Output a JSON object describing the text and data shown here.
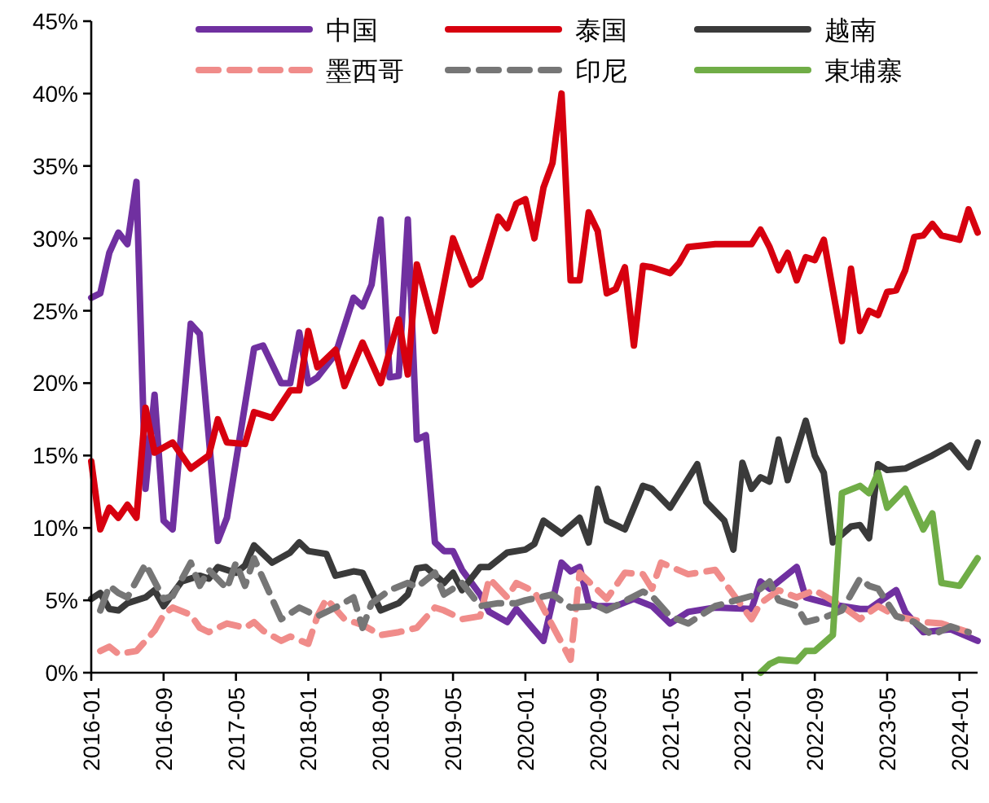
{
  "chart_data": {
    "type": "line",
    "xlim": [
      "2016-01",
      "2024-03"
    ],
    "xticks": [
      "2016-01",
      "2016-09",
      "2017-05",
      "2018-01",
      "2018-09",
      "2019-05",
      "2020-01",
      "2020-09",
      "2021-05",
      "2022-01",
      "2022-09",
      "2023-05",
      "2024-01"
    ],
    "ylim": [
      0,
      45
    ],
    "yticks": [
      {
        "value": 0,
        "label": "0%"
      },
      {
        "value": 5,
        "label": "5%"
      },
      {
        "value": 10,
        "label": "10%"
      },
      {
        "value": 15,
        "label": "15%"
      },
      {
        "value": 20,
        "label": "20%"
      },
      {
        "value": 25,
        "label": "25%"
      },
      {
        "value": 30,
        "label": "30%"
      },
      {
        "value": 35,
        "label": "35%"
      },
      {
        "value": 40,
        "label": "40%"
      },
      {
        "value": 45,
        "label": "45%"
      }
    ],
    "legend": "top",
    "series": [
      {
        "name": "中国",
        "color": "#7030a0",
        "line_style": "solid",
        "x": [
          "2016-01",
          "2016-02",
          "2016-03",
          "2016-04",
          "2016-05",
          "2016-06",
          "2016-07",
          "2016-08",
          "2016-09",
          "2016-10",
          "2016-12",
          "2017-01",
          "2017-03",
          "2017-04",
          "2017-07",
          "2017-08",
          "2017-10",
          "2017-11",
          "2017-12",
          "2018-01",
          "2018-02",
          "2018-04",
          "2018-06",
          "2018-07",
          "2018-08",
          "2018-09",
          "2018-10",
          "2018-11",
          "2018-12",
          "2019-01",
          "2019-02",
          "2019-03",
          "2019-04",
          "2019-05",
          "2019-06",
          "2019-08",
          "2019-09",
          "2019-11",
          "2019-12",
          "2020-03",
          "2020-05",
          "2020-06",
          "2020-07",
          "2020-08",
          "2020-09",
          "2020-11",
          "2021-01",
          "2021-03",
          "2021-05",
          "2021-07",
          "2021-10",
          "2022-02",
          "2022-03",
          "2022-04",
          "2022-07",
          "2022-08",
          "2022-11",
          "2023-02",
          "2023-03",
          "2023-06",
          "2023-07",
          "2023-09",
          "2023-12",
          "2024-03"
        ],
        "values": [
          25.9,
          26.2,
          29,
          30.4,
          29.6,
          33.9,
          12.7,
          19.2,
          10.5,
          9.9,
          24.1,
          23.4,
          9.1,
          10.7,
          22.4,
          22.6,
          20,
          20,
          23.5,
          20,
          20.4,
          22,
          25.9,
          25.3,
          26.8,
          31.3,
          20.4,
          20.5,
          31.3,
          16.1,
          16.4,
          9,
          8.4,
          8.4,
          7.1,
          5.4,
          4.2,
          3.5,
          4.4,
          2.2,
          7.6,
          7,
          7.3,
          4.8,
          4.6,
          4.6,
          5.1,
          4.6,
          3.4,
          4.2,
          4.5,
          4.4,
          6.3,
          5.8,
          7.3,
          5.2,
          4.7,
          4.4,
          4.4,
          5.7,
          4.2,
          2.8,
          3,
          2.2
        ]
      },
      {
        "name": "泰国",
        "color": "#d7000f",
        "line_style": "solid",
        "x": [
          "2016-01",
          "2016-02",
          "2016-03",
          "2016-04",
          "2016-05",
          "2016-06",
          "2016-07",
          "2016-08",
          "2016-10",
          "2016-12",
          "2017-02",
          "2017-03",
          "2017-04",
          "2017-06",
          "2017-07",
          "2017-09",
          "2017-11",
          "2017-12",
          "2018-01",
          "2018-02",
          "2018-04",
          "2018-05",
          "2018-07",
          "2018-09",
          "2018-11",
          "2018-12",
          "2019-01",
          "2019-03",
          "2019-05",
          "2019-07",
          "2019-08",
          "2019-10",
          "2019-11",
          "2019-12",
          "2020-01",
          "2020-02",
          "2020-03",
          "2020-04",
          "2020-05",
          "2020-06",
          "2020-07",
          "2020-08",
          "2020-09",
          "2020-10",
          "2020-11",
          "2020-12",
          "2021-01",
          "2021-02",
          "2021-03",
          "2021-05",
          "2021-06",
          "2021-07",
          "2021-10",
          "2022-02",
          "2022-03",
          "2022-04",
          "2022-05",
          "2022-06",
          "2022-07",
          "2022-08",
          "2022-09",
          "2022-10",
          "2022-12",
          "2023-01",
          "2023-02",
          "2023-03",
          "2023-04",
          "2023-05",
          "2023-06",
          "2023-07",
          "2023-08",
          "2023-09",
          "2023-10",
          "2023-11",
          "2024-01",
          "2024-02",
          "2024-03"
        ],
        "values": [
          14.6,
          9.9,
          11.4,
          10.7,
          11.6,
          10.7,
          18.3,
          15.2,
          15.9,
          14.1,
          15,
          17.5,
          15.9,
          15.8,
          18,
          17.6,
          19.5,
          19.5,
          23.6,
          21.1,
          22.3,
          19.8,
          22.8,
          20,
          24.4,
          20.6,
          28.2,
          23.6,
          30,
          26.8,
          27.3,
          31.5,
          30.7,
          32.4,
          32.7,
          30,
          33.5,
          35.2,
          40,
          27.1,
          27.1,
          31.8,
          30.5,
          26.2,
          26.5,
          28,
          22.6,
          28.1,
          28,
          27.6,
          28.3,
          29.4,
          29.6,
          29.6,
          30.6,
          29.4,
          27.8,
          29,
          27.1,
          28.7,
          28.5,
          29.9,
          22.9,
          27.9,
          23.6,
          25,
          24.7,
          26.3,
          26.4,
          27.8,
          30.1,
          30.2,
          31,
          30.2,
          29.9,
          32,
          30.4
        ]
      },
      {
        "name": "越南",
        "color": "#3a3a3a",
        "line_style": "solid",
        "x": [
          "2016-01",
          "2016-02",
          "2016-03",
          "2016-04",
          "2016-05",
          "2016-07",
          "2016-08",
          "2016-09",
          "2016-11",
          "2017-01",
          "2017-02",
          "2017-03",
          "2017-05",
          "2017-06",
          "2017-07",
          "2017-09",
          "2017-11",
          "2017-12",
          "2018-01",
          "2018-03",
          "2018-04",
          "2018-06",
          "2018-07",
          "2018-09",
          "2018-11",
          "2018-12",
          "2019-01",
          "2019-02",
          "2019-04",
          "2019-05",
          "2019-06",
          "2019-08",
          "2019-09",
          "2019-11",
          "2020-01",
          "2020-02",
          "2020-03",
          "2020-05",
          "2020-07",
          "2020-08",
          "2020-09",
          "2020-10",
          "2020-12",
          "2021-02",
          "2021-03",
          "2021-05",
          "2021-07",
          "2021-08",
          "2021-09",
          "2021-11",
          "2021-12",
          "2022-01",
          "2022-02",
          "2022-03",
          "2022-04",
          "2022-05",
          "2022-06",
          "2022-08",
          "2022-09",
          "2022-10",
          "2022-11",
          "2023-01",
          "2023-02",
          "2023-03",
          "2023-04",
          "2023-05",
          "2023-07",
          "2023-09",
          "2023-10",
          "2023-12",
          "2024-02",
          "2024-03"
        ],
        "values": [
          5.1,
          5.5,
          4.4,
          4.3,
          4.8,
          5.2,
          5.7,
          4.6,
          6.3,
          6.7,
          6.5,
          7.3,
          6.9,
          7.4,
          8.8,
          7.6,
          8.3,
          9,
          8.4,
          8.2,
          6.7,
          7,
          6.9,
          4.3,
          4.8,
          5.4,
          7.2,
          7.3,
          6.2,
          6.9,
          5.7,
          7.3,
          7.3,
          8.3,
          8.5,
          8.9,
          10.5,
          9.6,
          10.7,
          9,
          12.7,
          10.5,
          9.9,
          12.9,
          12.7,
          11.4,
          13.4,
          14.4,
          11.8,
          10.5,
          8.5,
          14.5,
          12.7,
          13.5,
          13.2,
          16.1,
          13.3,
          17.4,
          15,
          13.8,
          9,
          10.1,
          10.2,
          9.3,
          14.4,
          14,
          14.1,
          14.7,
          15,
          15.7,
          14.2,
          15.9
        ]
      },
      {
        "name": "墨西哥",
        "color": "#f08c8a",
        "line_style": "dashed",
        "x": [
          "2016-02",
          "2016-03",
          "2016-04",
          "2016-06",
          "2016-08",
          "2016-09",
          "2016-10",
          "2016-12",
          "2017-01",
          "2017-02",
          "2017-04",
          "2017-06",
          "2017-07",
          "2017-08",
          "2017-10",
          "2017-11",
          "2018-01",
          "2018-02",
          "2018-03",
          "2018-05",
          "2018-07",
          "2018-09",
          "2018-11",
          "2019-01",
          "2019-03",
          "2019-04",
          "2019-06",
          "2019-08",
          "2019-09",
          "2019-11",
          "2019-12",
          "2020-02",
          "2020-06",
          "2020-07",
          "2020-08",
          "2020-10",
          "2020-12",
          "2021-02",
          "2021-03",
          "2021-04",
          "2021-07",
          "2021-10",
          "2021-12",
          "2022-02",
          "2022-03",
          "2022-05",
          "2022-07",
          "2022-09",
          "2022-12",
          "2023-02",
          "2023-04",
          "2023-06",
          "2023-09",
          "2023-11",
          "2024-02"
        ],
        "values": [
          1.5,
          1.8,
          1.3,
          1.5,
          2.9,
          4,
          4.5,
          4,
          3.1,
          2.8,
          3.4,
          3.1,
          3.5,
          2.9,
          2.2,
          2.5,
          2,
          3.9,
          5.1,
          3.7,
          3.3,
          2.6,
          2.8,
          3.1,
          4.5,
          4.3,
          3.7,
          3.9,
          6.5,
          5.2,
          6.2,
          5.6,
          0.9,
          6.9,
          6.3,
          5.1,
          6.9,
          6.8,
          5.8,
          7.6,
          6.8,
          7.1,
          5.4,
          3.7,
          4.8,
          5.7,
          5.2,
          5.7,
          4.6,
          3.7,
          4.6,
          3.9,
          3.5,
          3.4,
          2.8
        ]
      },
      {
        "name": "印尼",
        "color": "#767676",
        "line_style": "dashed",
        "x": [
          "2016-02",
          "2016-03",
          "2016-04",
          "2016-05",
          "2016-07",
          "2016-09",
          "2016-10",
          "2016-12",
          "2017-01",
          "2017-02",
          "2017-04",
          "2017-05",
          "2017-06",
          "2017-07",
          "2017-10",
          "2017-12",
          "2018-02",
          "2018-04",
          "2018-06",
          "2018-07",
          "2018-08",
          "2018-10",
          "2018-12",
          "2019-01",
          "2019-03",
          "2019-04",
          "2019-06",
          "2019-08",
          "2019-10",
          "2019-12",
          "2020-01",
          "2020-04",
          "2020-06",
          "2020-09",
          "2020-10",
          "2021-02",
          "2021-03",
          "2021-05",
          "2021-07",
          "2021-10",
          "2022-02",
          "2022-04",
          "2022-05",
          "2022-07",
          "2022-08",
          "2022-10",
          "2022-12",
          "2023-02",
          "2023-03",
          "2023-04",
          "2023-06",
          "2023-08",
          "2023-10",
          "2023-12",
          "2024-02"
        ],
        "values": [
          4.3,
          6,
          5.5,
          5.2,
          7.5,
          5.1,
          5.3,
          7.6,
          6,
          7.1,
          5.8,
          7.6,
          6,
          7.9,
          3.7,
          4.5,
          3.9,
          4.5,
          5.2,
          3.1,
          4.8,
          5.7,
          6.2,
          5.9,
          6.9,
          5.4,
          6.2,
          4.6,
          4.8,
          4.8,
          5,
          5.4,
          4.5,
          4.6,
          4.3,
          5.6,
          5.3,
          3.9,
          3.4,
          4.6,
          5.3,
          6.3,
          5,
          4.6,
          3.5,
          3.8,
          4.3,
          6.5,
          6,
          5.8,
          3.9,
          3.5,
          2.6,
          3.2,
          2.8
        ]
      },
      {
        "name": "東埔寨",
        "color": "#70ad47",
        "line_style": "solid",
        "x": [
          "2022-03",
          "2022-04",
          "2022-05",
          "2022-07",
          "2022-08",
          "2022-09",
          "2022-11",
          "2022-12",
          "2023-02",
          "2023-03",
          "2023-04",
          "2023-05",
          "2023-07",
          "2023-09",
          "2023-10",
          "2023-11",
          "2024-01",
          "2024-03"
        ],
        "values": [
          0,
          0.6,
          0.9,
          0.8,
          1.5,
          1.5,
          2.6,
          12.4,
          12.9,
          12.4,
          13.8,
          11.4,
          12.7,
          9.9,
          11,
          6.2,
          6,
          7.9
        ]
      }
    ]
  }
}
